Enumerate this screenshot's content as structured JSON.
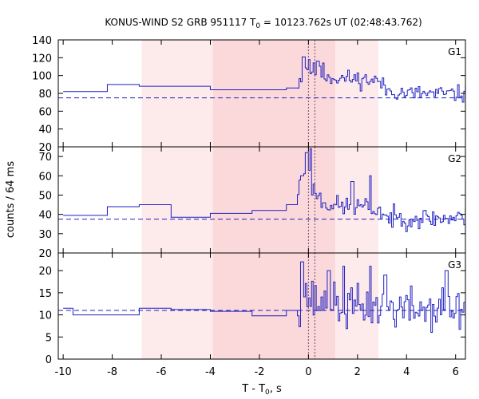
{
  "chart_data": {
    "type": "line",
    "title": "KONUS-WIND S2 GRB 951117 T",
    "title_sub": "0",
    "title_rest": " = 10123.762s UT (02:48:43.762)",
    "xlabel_main": "T - T",
    "xlabel_sub": "0",
    "xlabel_rest": ", s",
    "ylabel": "counts / 64 ms",
    "xlim": [
      -10.2,
      6.4
    ],
    "x_ticks": [
      -10,
      -8,
      -6,
      -4,
      -2,
      0,
      2,
      4,
      6
    ],
    "x_tick_labels": [
      "-10",
      "-8",
      "-6",
      "-4",
      "-2",
      "0",
      "2",
      "4",
      "6"
    ],
    "grid": false,
    "colors": {
      "series": "#2020c0",
      "background_dashed": "#2020c0",
      "shade_light": "#fdeaea",
      "shade_dark": "#fbd9db",
      "marker_lines": "#6e4a6e"
    },
    "shaded_intervals": [
      {
        "x0": -6.8,
        "x1": -3.9,
        "shade": "light"
      },
      {
        "x0": -3.9,
        "x1": 1.1,
        "shade": "dark"
      },
      {
        "x0": 1.1,
        "x1": 2.85,
        "shade": "light"
      }
    ],
    "vertical_markers": [
      0.0,
      0.26
    ],
    "panels": [
      {
        "label": "G1",
        "ylim": [
          20,
          140
        ],
        "y_ticks": [
          20,
          40,
          60,
          80,
          100,
          120,
          140
        ],
        "y_tick_labels": [
          "20",
          "40",
          "60",
          "80",
          "100",
          "120",
          "140"
        ],
        "background": 75,
        "seed": 11,
        "coarse": [
          {
            "x0": -10.0,
            "x1": -8.2,
            "y": 82
          },
          {
            "x0": -8.2,
            "x1": -6.9,
            "y": 90
          },
          {
            "x0": -6.9,
            "x1": -4.0,
            "y": 88
          },
          {
            "x0": -4.0,
            "x1": -0.9,
            "y": 84
          },
          {
            "x0": -0.9,
            "x1": -0.45,
            "y": 86
          }
        ],
        "fine_envelope": [
          [
            -0.45,
            92
          ],
          [
            -0.1,
            110
          ],
          [
            0.15,
            105
          ],
          [
            0.6,
            100
          ],
          [
            1.2,
            97
          ],
          [
            2.0,
            96
          ],
          [
            2.85,
            94
          ],
          [
            3.1,
            84
          ],
          [
            4.0,
            80
          ],
          [
            6.4,
            79
          ]
        ],
        "fine_noise": 9,
        "peaks": [
          [
            -0.22,
            121
          ],
          [
            0.0,
            118
          ],
          [
            0.35,
            116
          ],
          [
            0.58,
            114
          ]
        ]
      },
      {
        "label": "G2",
        "ylim": [
          20,
          75
        ],
        "y_ticks": [
          20,
          30,
          40,
          50,
          60,
          70
        ],
        "y_tick_labels": [
          "20",
          "30",
          "40",
          "50",
          "60",
          "70"
        ],
        "background": 37.5,
        "seed": 23,
        "coarse": [
          {
            "x0": -10.0,
            "x1": -8.2,
            "y": 39.5
          },
          {
            "x0": -8.2,
            "x1": -6.9,
            "y": 44
          },
          {
            "x0": -6.9,
            "x1": -5.6,
            "y": 45
          },
          {
            "x0": -5.6,
            "x1": -4.0,
            "y": 38.5
          },
          {
            "x0": -4.0,
            "x1": -2.3,
            "y": 40.5
          },
          {
            "x0": -2.3,
            "x1": -0.9,
            "y": 42
          },
          {
            "x0": -0.9,
            "x1": -0.45,
            "y": 45
          }
        ],
        "fine_envelope": [
          [
            -0.45,
            52
          ],
          [
            -0.15,
            65
          ],
          [
            0.1,
            55
          ],
          [
            0.5,
            47
          ],
          [
            1.2,
            44
          ],
          [
            2.2,
            44
          ],
          [
            2.9,
            42
          ],
          [
            3.2,
            38
          ],
          [
            4.5,
            38
          ],
          [
            6.4,
            38
          ]
        ],
        "fine_noise": 5,
        "peaks": [
          [
            -0.1,
            72
          ],
          [
            0.05,
            74
          ],
          [
            -0.3,
            60
          ],
          [
            2.5,
            60
          ],
          [
            1.75,
            57
          ]
        ]
      },
      {
        "label": "G3",
        "ylim": [
          0,
          24
        ],
        "y_ticks": [
          0,
          5,
          10,
          15,
          20
        ],
        "y_tick_labels": [
          "0",
          "5",
          "10",
          "15",
          "20"
        ],
        "background": 11,
        "seed": 37,
        "coarse": [
          {
            "x0": -10.0,
            "x1": -9.6,
            "y": 11.5
          },
          {
            "x0": -9.6,
            "x1": -6.9,
            "y": 10
          },
          {
            "x0": -6.9,
            "x1": -5.6,
            "y": 11.5
          },
          {
            "x0": -5.6,
            "x1": -4.0,
            "y": 11.2
          },
          {
            "x0": -4.0,
            "x1": -2.3,
            "y": 10.8
          },
          {
            "x0": -2.3,
            "x1": -0.9,
            "y": 9.8
          },
          {
            "x0": -0.9,
            "x1": -0.45,
            "y": 11
          }
        ],
        "fine_envelope": [
          [
            -0.45,
            12
          ],
          [
            -0.2,
            15
          ],
          [
            0.2,
            13
          ],
          [
            1.0,
            12
          ],
          [
            3.0,
            11.5
          ],
          [
            6.4,
            11
          ]
        ],
        "fine_noise": 4.5,
        "peaks": [
          [
            -0.3,
            22
          ],
          [
            0.8,
            20
          ],
          [
            1.4,
            21
          ],
          [
            2.5,
            21
          ],
          [
            3.1,
            19
          ],
          [
            5.6,
            20
          ]
        ]
      }
    ]
  }
}
